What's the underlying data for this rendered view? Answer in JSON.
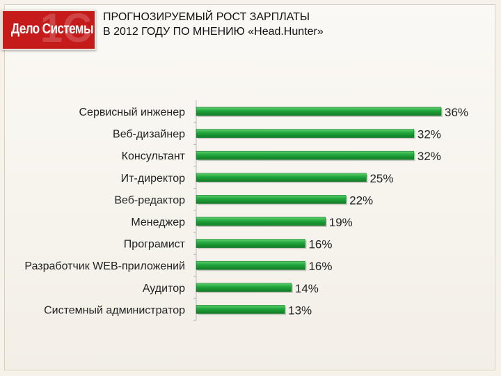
{
  "header": {
    "logo_text": "Дело Системы",
    "logo_mark": "1С",
    "title_line1": "ПРОГНОЗИРУЕМЫЙ РОСТ ЗАРПЛАТЫ",
    "title_line2": "В 2012 ГОДУ ПО МНЕНИЮ «Head.Hunter»"
  },
  "colors": {
    "bar": "#1fa43a",
    "bar_dark": "#137a27",
    "bar_light": "#5fd06f",
    "axis": "#b8b8b8",
    "text": "#222222",
    "brand_red": "#c51b1b"
  },
  "chart_data": {
    "type": "bar",
    "orientation": "horizontal",
    "title": "",
    "xlabel": "",
    "ylabel": "",
    "categories": [
      "Сервисный инженер",
      "Веб-дизайнер",
      "Консультант",
      "Ит-директор",
      "Веб-редактор",
      "Менеджер",
      "Програмист",
      "Разработчик WEB-приложений",
      "Аудитор",
      "Системный администратор"
    ],
    "values": [
      36,
      32,
      32,
      25,
      22,
      19,
      16,
      16,
      14,
      13
    ],
    "value_labels": [
      "36%",
      "32%",
      "32%",
      "25%",
      "22%",
      "19%",
      "16%",
      "16%",
      "14%",
      "13%"
    ],
    "xlim": [
      0,
      36
    ],
    "grid": false,
    "legend": "none"
  }
}
